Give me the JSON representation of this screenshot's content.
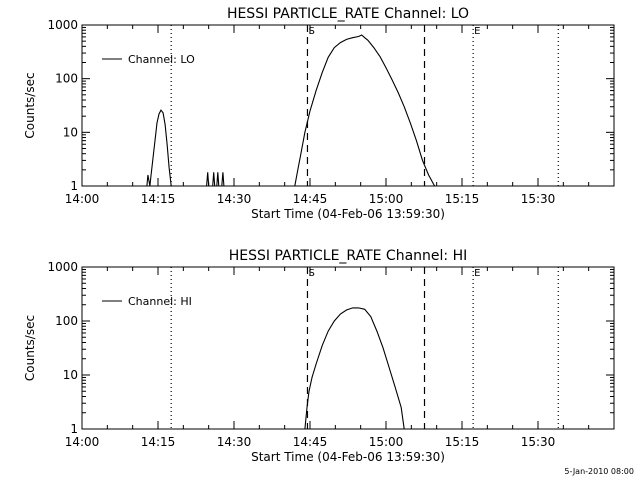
{
  "chart_data": [
    {
      "type": "line",
      "title": "HESSI PARTICLE_RATE Channel: LO",
      "xlabel": "Start Time (04-Feb-06 13:59:30)",
      "ylabel": "Counts/sec",
      "y_scale": "log",
      "ylim": [
        1,
        1000
      ],
      "xlim": [
        "14:00",
        "15:45"
      ],
      "x_ticks": [
        "14:00",
        "14:15",
        "14:30",
        "14:45",
        "15:00",
        "15:15",
        "15:30"
      ],
      "y_ticks": [
        "1",
        "10",
        "100",
        "1000"
      ],
      "grid": false,
      "legend_placement": "top-left",
      "series": [
        {
          "name": "Channel: LO",
          "points": [
            [
              "14:12:48",
              1.0
            ],
            [
              "14:13:00",
              1.6
            ],
            [
              "14:13:24",
              1.0
            ],
            [
              "14:13:36",
              1.5
            ],
            [
              "14:14:00",
              3.2
            ],
            [
              "14:14:24",
              7
            ],
            [
              "14:14:48",
              15
            ],
            [
              "14:15:12",
              22
            ],
            [
              "14:15:36",
              26
            ],
            [
              "14:16:00",
              23
            ],
            [
              "14:16:24",
              14
            ],
            [
              "14:16:48",
              6
            ],
            [
              "14:17:12",
              2.2
            ],
            [
              "14:17:36",
              1.0
            ],
            [
              "14:24:36",
              1.0
            ],
            [
              "14:24:48",
              1.8
            ],
            [
              "14:25:00",
              1.0
            ],
            [
              "14:25:48",
              1.0
            ],
            [
              "14:26:00",
              1.8
            ],
            [
              "14:26:12",
              1.0
            ],
            [
              "14:26:36",
              1.0
            ],
            [
              "14:26:48",
              1.8
            ],
            [
              "14:27:00",
              1.0
            ],
            [
              "14:27:36",
              1.0
            ],
            [
              "14:27:48",
              1.8
            ],
            [
              "14:28:00",
              1.0
            ],
            [
              "14:42:00",
              1.0
            ],
            [
              "14:42:36",
              2
            ],
            [
              "14:43:12",
              4
            ],
            [
              "14:44:00",
              10
            ],
            [
              "14:45:00",
              25
            ],
            [
              "14:46:12",
              60
            ],
            [
              "14:47:24",
              130
            ],
            [
              "14:48:36",
              250
            ],
            [
              "14:49:48",
              380
            ],
            [
              "14:51:00",
              470
            ],
            [
              "14:52:12",
              540
            ],
            [
              "14:53:24",
              580
            ],
            [
              "14:54:36",
              610
            ],
            [
              "14:55:12",
              650
            ],
            [
              "14:55:48",
              580
            ],
            [
              "14:56:24",
              520
            ],
            [
              "14:57:36",
              380
            ],
            [
              "14:58:48",
              260
            ],
            [
              "15:00:00",
              160
            ],
            [
              "15:01:12",
              95
            ],
            [
              "15:02:24",
              55
            ],
            [
              "15:03:36",
              30
            ],
            [
              "15:04:48",
              15
            ],
            [
              "15:06:00",
              7
            ],
            [
              "15:07:12",
              3
            ],
            [
              "15:08:24",
              1.6
            ],
            [
              "15:09:36",
              1.0
            ]
          ]
        }
      ],
      "vertical_lines": [
        {
          "x": "14:17:36",
          "style": "dotted",
          "label": ""
        },
        {
          "x": "14:44:30",
          "style": "dashed",
          "label": "S"
        },
        {
          "x": "15:07:36",
          "style": "dashed",
          "label": ""
        },
        {
          "x": "15:17:12",
          "style": "dotted",
          "label": "E"
        },
        {
          "x": "15:34:00",
          "style": "dotted",
          "label": ""
        }
      ]
    },
    {
      "type": "line",
      "title": "HESSI PARTICLE_RATE Channel: HI",
      "xlabel": "Start Time (04-Feb-06 13:59:30)",
      "ylabel": "Counts/sec",
      "y_scale": "log",
      "ylim": [
        1,
        1000
      ],
      "xlim": [
        "14:00",
        "15:45"
      ],
      "x_ticks": [
        "14:00",
        "14:15",
        "14:30",
        "14:45",
        "15:00",
        "15:15",
        "15:30"
      ],
      "y_ticks": [
        "1",
        "10",
        "100",
        "1000"
      ],
      "grid": false,
      "legend_placement": "top-left",
      "series": [
        {
          "name": "Channel: HI",
          "points": [
            [
              "14:44:00",
              1.0
            ],
            [
              "14:44:24",
              2.5
            ],
            [
              "14:44:48",
              5
            ],
            [
              "14:45:24",
              9
            ],
            [
              "14:46:12",
              16
            ],
            [
              "14:47:24",
              35
            ],
            [
              "14:48:36",
              65
            ],
            [
              "14:49:48",
              100
            ],
            [
              "14:51:00",
              135
            ],
            [
              "14:52:12",
              160
            ],
            [
              "14:53:24",
              175
            ],
            [
              "14:54:36",
              175
            ],
            [
              "14:55:48",
              165
            ],
            [
              "14:57:00",
              120
            ],
            [
              "14:58:12",
              65
            ],
            [
              "14:59:24",
              32
            ],
            [
              "15:00:36",
              14
            ],
            [
              "15:01:48",
              6
            ],
            [
              "15:03:00",
              2.5
            ],
            [
              "15:03:36",
              1.0
            ]
          ]
        }
      ],
      "vertical_lines": [
        {
          "x": "14:17:36",
          "style": "dotted",
          "label": ""
        },
        {
          "x": "14:44:30",
          "style": "dashed",
          "label": "S"
        },
        {
          "x": "15:07:36",
          "style": "dashed",
          "label": ""
        },
        {
          "x": "15:17:12",
          "style": "dotted",
          "label": "E"
        },
        {
          "x": "15:34:00",
          "style": "dotted",
          "label": ""
        }
      ]
    }
  ],
  "footer": {
    "timestamp": "5-Jan-2010 08:00"
  }
}
